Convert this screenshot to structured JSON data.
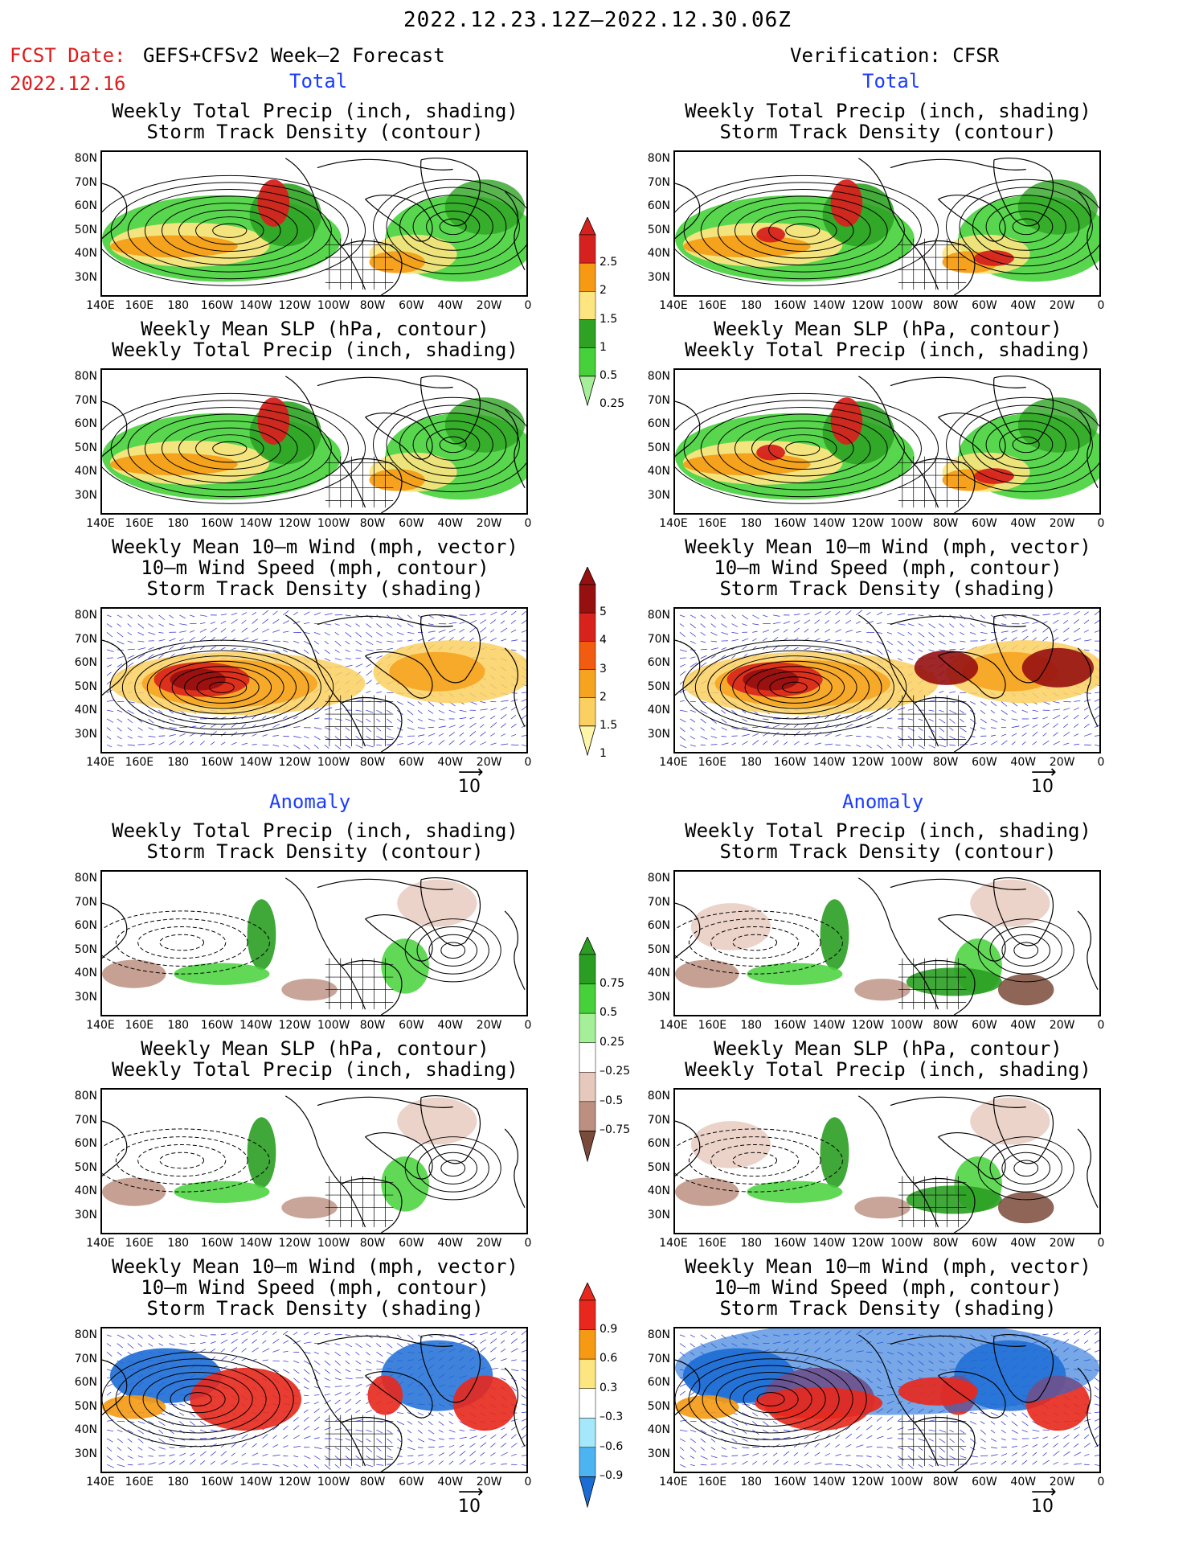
{
  "header": {
    "title": "2022.12.23.12Z–2022.12.30.06Z",
    "fcst_label": "FCST Date:",
    "fcst_source": "GEFS+CFSv2 Week–2 Forecast",
    "fcst_date": "2022.12.16",
    "verification": "Verification: CFSR"
  },
  "sections": {
    "total": "Total",
    "anomaly": "Anomaly"
  },
  "panel_titles": {
    "precip_storm": [
      "Weekly Total Precip (inch, shading)",
      "Storm Track Density (contour)"
    ],
    "slp_precip": [
      "Weekly Mean SLP (hPa, contour)",
      "Weekly Total Precip (inch, shading)"
    ],
    "wind_storm": [
      "Weekly Mean 10–m Wind (mph, vector)",
      "10–m Wind Speed (mph, contour)",
      "Storm Track Density (shading)"
    ]
  },
  "axes": {
    "lat_labels": [
      "80N",
      "70N",
      "60N",
      "50N",
      "40N",
      "30N"
    ],
    "lon_labels": [
      "140E",
      "160E",
      "180",
      "160W",
      "140W",
      "120W",
      "100W",
      "80W",
      "60W",
      "40W",
      "20W",
      "0"
    ]
  },
  "vector_ref": "10",
  "colorbars": {
    "precip_total": {
      "labels": [
        "2.5",
        "2",
        "1.5",
        "1",
        "0.5",
        "0.25"
      ],
      "colors": [
        "#d6221e",
        "#f59a12",
        "#fde580",
        "#2ea323",
        "#46d13a",
        "#a5ef98"
      ]
    },
    "storm_total": {
      "labels": [
        "5",
        "4",
        "3",
        "2",
        "1.5",
        "1"
      ],
      "colors": [
        "#961010",
        "#d8221c",
        "#f25c10",
        "#f6a420",
        "#fbd060",
        "#fdf6a8"
      ]
    },
    "precip_anom": {
      "labels": [
        "0.75",
        "0.5",
        "0.25",
        "–0.25",
        "–0.5",
        "–0.75"
      ],
      "colors": [
        "#2a9e22",
        "#46d13a",
        "#a5ef98",
        "#ffffff",
        "#e6c8bc",
        "#bc8f80",
        "#7a4a3a"
      ]
    },
    "storm_anom": {
      "labels": [
        "0.9",
        "0.6",
        "0.3",
        "–0.3",
        "–0.6",
        "–0.9"
      ],
      "colors": [
        "#e8281c",
        "#f59a12",
        "#fde580",
        "#ffffff",
        "#a6e8fb",
        "#4db4f2",
        "#1c6cd6"
      ]
    }
  }
}
